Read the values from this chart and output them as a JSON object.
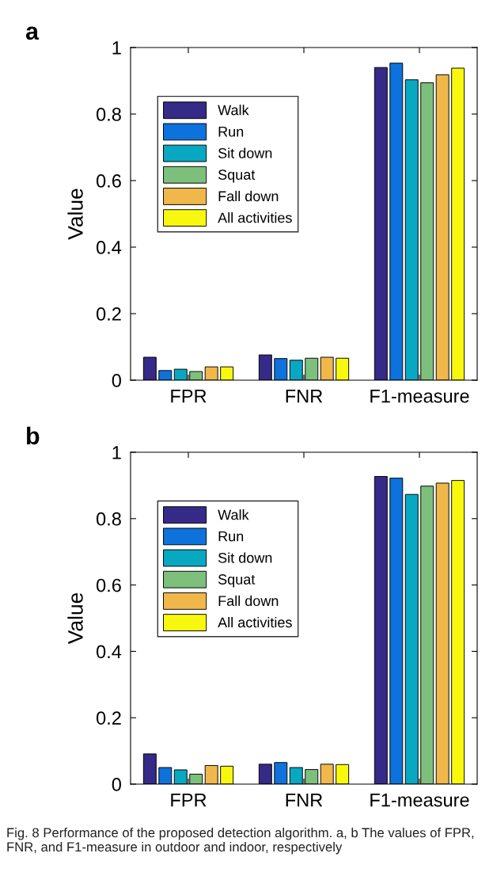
{
  "chart_data": [
    {
      "type": "bar",
      "title": "a",
      "ylabel": "Value",
      "categories": [
        "FPR",
        "FNR",
        "F1-measure"
      ],
      "ylim": [
        0,
        1
      ],
      "yticks": [
        0,
        0.2,
        0.4,
        0.6,
        0.8,
        1
      ],
      "legend": "top left",
      "grid": false,
      "series": [
        {
          "name": "Walk",
          "color": "#352a87",
          "values": [
            0.069,
            0.076,
            0.94
          ]
        },
        {
          "name": "Run",
          "color": "#0d72dc",
          "values": [
            0.029,
            0.065,
            0.953
          ]
        },
        {
          "name": "Sit down",
          "color": "#08a8c2",
          "values": [
            0.033,
            0.06,
            0.903
          ]
        },
        {
          "name": "Squat",
          "color": "#7dc07c",
          "values": [
            0.026,
            0.066,
            0.894
          ]
        },
        {
          "name": "Fall down",
          "color": "#f0b84a",
          "values": [
            0.04,
            0.069,
            0.918
          ]
        },
        {
          "name": "All activities",
          "color": "#f8f80e",
          "values": [
            0.04,
            0.066,
            0.938
          ]
        }
      ]
    },
    {
      "type": "bar",
      "title": "b",
      "ylabel": "Value",
      "categories": [
        "FPR",
        "FNR",
        "F1-measure"
      ],
      "ylim": [
        0,
        1
      ],
      "yticks": [
        0,
        0.2,
        0.4,
        0.6,
        0.8,
        1
      ],
      "legend": "top left",
      "grid": false,
      "annotations": [
        "Fig. 8 Performance of the proposed detection algorithm. a, b The values of FPR, FNR, and F1-measure in outdoor and indoor, respectively"
      ],
      "series": [
        {
          "name": "Walk",
          "color": "#352a87",
          "values": [
            0.091,
            0.06,
            0.927
          ]
        },
        {
          "name": "Run",
          "color": "#0d72dc",
          "values": [
            0.05,
            0.065,
            0.922
          ]
        },
        {
          "name": "Sit down",
          "color": "#08a8c2",
          "values": [
            0.043,
            0.05,
            0.873
          ]
        },
        {
          "name": "Squat",
          "color": "#7dc07c",
          "values": [
            0.03,
            0.044,
            0.898
          ]
        },
        {
          "name": "Fall down",
          "color": "#f0b84a",
          "values": [
            0.056,
            0.06,
            0.907
          ]
        },
        {
          "name": "All activities",
          "color": "#f8f80e",
          "values": [
            0.054,
            0.059,
            0.915
          ]
        }
      ]
    }
  ]
}
